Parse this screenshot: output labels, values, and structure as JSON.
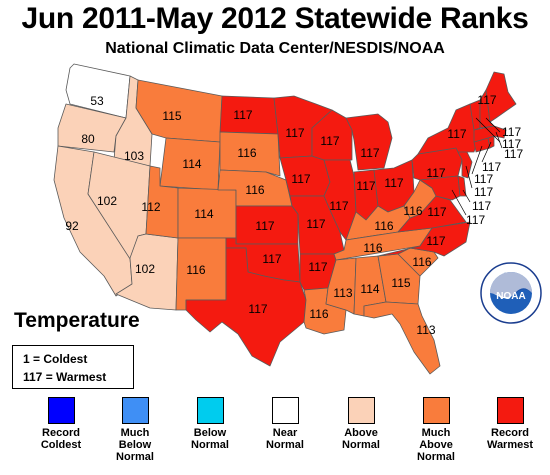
{
  "header": {
    "title": "Jun 2011-May 2012 Statewide Ranks",
    "subtitle": "National Climatic Data Center/NESDIS/NOAA"
  },
  "legend": {
    "title": "Temperature",
    "scale_coldest": "1 = Coldest",
    "scale_warmest": "117 = Warmest",
    "categories": [
      {
        "label": "Record\nColdest",
        "color": "#0000ff"
      },
      {
        "label": "Much\nBelow\nNormal",
        "color": "#3f8ff5"
      },
      {
        "label": "Below\nNormal",
        "color": "#00ccee"
      },
      {
        "label": "Near\nNormal",
        "color": "#ffffff"
      },
      {
        "label": "Above\nNormal",
        "color": "#fbd2b8"
      },
      {
        "label": "Much\nAbove\nNormal",
        "color": "#f97c3c"
      },
      {
        "label": "Record\nWarmest",
        "color": "#f41a10"
      }
    ]
  },
  "logo": {
    "text": "NOAA",
    "icon": "noaa-logo-icon"
  },
  "states": {
    "WA": {
      "rank": "53",
      "category": "Near Normal"
    },
    "OR": {
      "rank": "80",
      "category": "Above Normal"
    },
    "CA": {
      "rank": "92",
      "category": "Above Normal"
    },
    "ID": {
      "rank": "103",
      "category": "Above Normal"
    },
    "NV": {
      "rank": "102",
      "category": "Above Normal"
    },
    "AZ": {
      "rank": "102",
      "category": "Above Normal"
    },
    "MT": {
      "rank": "115",
      "category": "Much Above Normal"
    },
    "WY": {
      "rank": "114",
      "category": "Much Above Normal"
    },
    "UT": {
      "rank": "112",
      "category": "Much Above Normal"
    },
    "CO": {
      "rank": "114",
      "category": "Much Above Normal"
    },
    "NM": {
      "rank": "116",
      "category": "Much Above Normal"
    },
    "ND": {
      "rank": "117",
      "category": "Record Warmest"
    },
    "SD": {
      "rank": "116",
      "category": "Much Above Normal"
    },
    "NE": {
      "rank": "116",
      "category": "Much Above Normal"
    },
    "KS": {
      "rank": "117",
      "category": "Record Warmest"
    },
    "OK": {
      "rank": "117",
      "category": "Record Warmest"
    },
    "TX": {
      "rank": "117",
      "category": "Record Warmest"
    },
    "MN": {
      "rank": "117",
      "category": "Record Warmest"
    },
    "IA": {
      "rank": "117",
      "category": "Record Warmest"
    },
    "MO": {
      "rank": "117",
      "category": "Record Warmest"
    },
    "AR": {
      "rank": "117",
      "category": "Record Warmest"
    },
    "LA": {
      "rank": "116",
      "category": "Much Above Normal"
    },
    "WI": {
      "rank": "117",
      "category": "Record Warmest"
    },
    "IL": {
      "rank": "117",
      "category": "Record Warmest"
    },
    "MI": {
      "rank": "117",
      "category": "Record Warmest"
    },
    "IN": {
      "rank": "117",
      "category": "Record Warmest"
    },
    "OH": {
      "rank": "117",
      "category": "Record Warmest"
    },
    "KY": {
      "rank": "116",
      "category": "Much Above Normal"
    },
    "TN": {
      "rank": "116",
      "category": "Much Above Normal"
    },
    "MS": {
      "rank": "113",
      "category": "Much Above Normal"
    },
    "AL": {
      "rank": "114",
      "category": "Much Above Normal"
    },
    "GA": {
      "rank": "115",
      "category": "Much Above Normal"
    },
    "FL": {
      "rank": "113",
      "category": "Much Above Normal"
    },
    "SC": {
      "rank": "116",
      "category": "Much Above Normal"
    },
    "NC": {
      "rank": "117",
      "category": "Record Warmest"
    },
    "VA": {
      "rank": "117",
      "category": "Record Warmest"
    },
    "WV": {
      "rank": "116",
      "category": "Much Above Normal"
    },
    "PA": {
      "rank": "117",
      "category": "Record Warmest"
    },
    "NY": {
      "rank": "117",
      "category": "Record Warmest"
    },
    "ME": {
      "rank": "117",
      "category": "Record Warmest"
    },
    "NH": {
      "rank": "117",
      "category": "Record Warmest"
    },
    "VT": {
      "rank": "117",
      "category": "Record Warmest"
    },
    "MA": {
      "rank": "117",
      "category": "Record Warmest"
    },
    "RI": {
      "rank": "117",
      "category": "Record Warmest"
    },
    "CT": {
      "rank": "117",
      "category": "Record Warmest"
    },
    "NJ": {
      "rank": "117",
      "category": "Record Warmest"
    },
    "DE": {
      "rank": "117",
      "category": "Record Warmest"
    },
    "MD": {
      "rank": "117",
      "category": "Record Warmest"
    }
  }
}
